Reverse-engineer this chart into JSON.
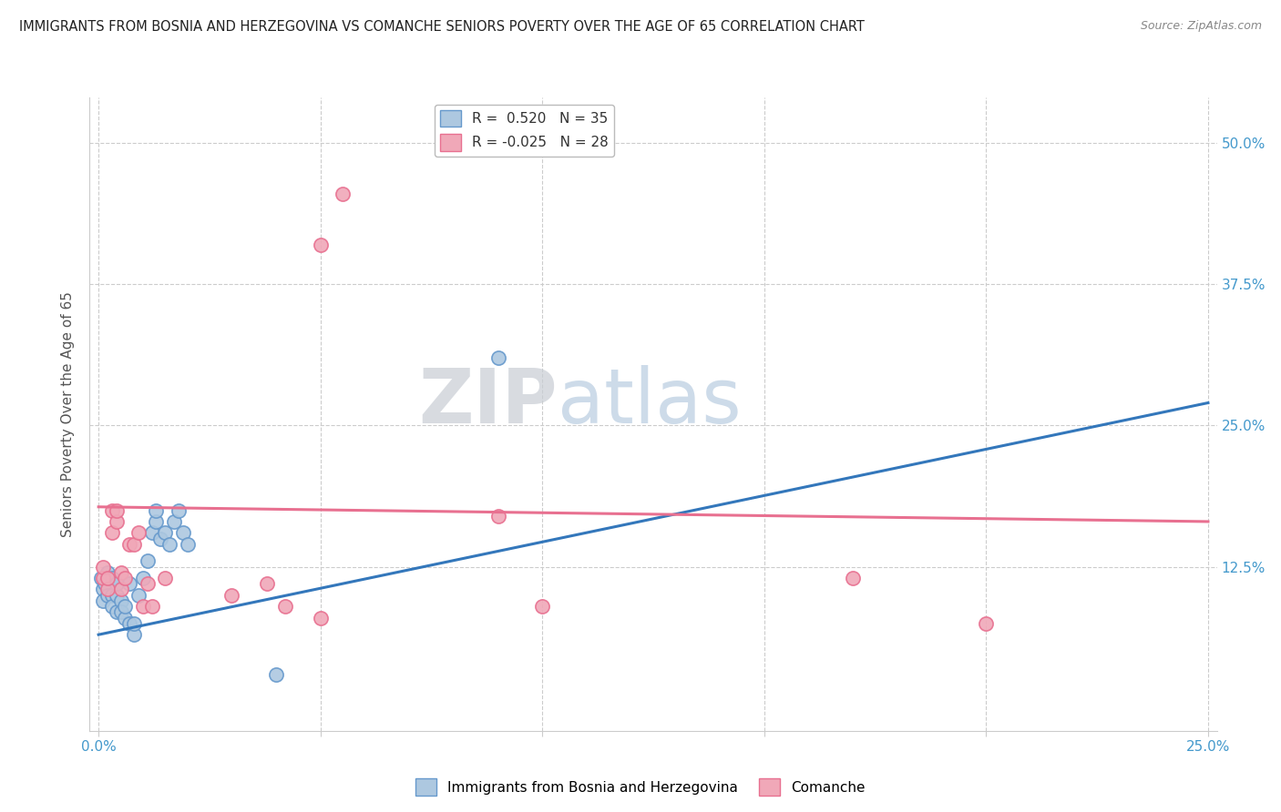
{
  "title": "IMMIGRANTS FROM BOSNIA AND HERZEGOVINA VS COMANCHE SENIORS POVERTY OVER THE AGE OF 65 CORRELATION CHART",
  "source": "Source: ZipAtlas.com",
  "ylabel": "Seniors Poverty Over the Age of 65",
  "y_tick_labels_right": [
    "50.0%",
    "37.5%",
    "25.0%",
    "12.5%"
  ],
  "y_tick_positions": [
    0.5,
    0.375,
    0.25,
    0.125
  ],
  "xlim": [
    -0.002,
    0.252
  ],
  "ylim": [
    -0.02,
    0.54
  ],
  "blue_scatter": [
    [
      0.0005,
      0.115
    ],
    [
      0.001,
      0.105
    ],
    [
      0.001,
      0.095
    ],
    [
      0.0015,
      0.11
    ],
    [
      0.002,
      0.12
    ],
    [
      0.002,
      0.1
    ],
    [
      0.003,
      0.115
    ],
    [
      0.003,
      0.1
    ],
    [
      0.003,
      0.09
    ],
    [
      0.004,
      0.085
    ],
    [
      0.004,
      0.1
    ],
    [
      0.004,
      0.11
    ],
    [
      0.005,
      0.095
    ],
    [
      0.005,
      0.085
    ],
    [
      0.006,
      0.08
    ],
    [
      0.006,
      0.09
    ],
    [
      0.007,
      0.075
    ],
    [
      0.007,
      0.11
    ],
    [
      0.008,
      0.065
    ],
    [
      0.008,
      0.075
    ],
    [
      0.009,
      0.1
    ],
    [
      0.01,
      0.115
    ],
    [
      0.011,
      0.13
    ],
    [
      0.012,
      0.155
    ],
    [
      0.013,
      0.165
    ],
    [
      0.013,
      0.175
    ],
    [
      0.014,
      0.15
    ],
    [
      0.015,
      0.155
    ],
    [
      0.016,
      0.145
    ],
    [
      0.017,
      0.165
    ],
    [
      0.018,
      0.175
    ],
    [
      0.019,
      0.155
    ],
    [
      0.02,
      0.145
    ],
    [
      0.04,
      0.03
    ],
    [
      0.09,
      0.31
    ]
  ],
  "pink_scatter": [
    [
      0.001,
      0.115
    ],
    [
      0.001,
      0.125
    ],
    [
      0.002,
      0.105
    ],
    [
      0.002,
      0.115
    ],
    [
      0.003,
      0.155
    ],
    [
      0.003,
      0.175
    ],
    [
      0.004,
      0.165
    ],
    [
      0.004,
      0.175
    ],
    [
      0.005,
      0.12
    ],
    [
      0.005,
      0.105
    ],
    [
      0.006,
      0.115
    ],
    [
      0.007,
      0.145
    ],
    [
      0.008,
      0.145
    ],
    [
      0.009,
      0.155
    ],
    [
      0.01,
      0.09
    ],
    [
      0.011,
      0.11
    ],
    [
      0.012,
      0.09
    ],
    [
      0.015,
      0.115
    ],
    [
      0.03,
      0.1
    ],
    [
      0.038,
      0.11
    ],
    [
      0.042,
      0.09
    ],
    [
      0.05,
      0.08
    ],
    [
      0.05,
      0.41
    ],
    [
      0.055,
      0.455
    ],
    [
      0.09,
      0.17
    ],
    [
      0.1,
      0.09
    ],
    [
      0.17,
      0.115
    ],
    [
      0.2,
      0.075
    ]
  ],
  "blue_line_x": [
    0.0,
    0.25
  ],
  "blue_line_y": [
    0.065,
    0.27
  ],
  "pink_line_x": [
    0.0,
    0.25
  ],
  "pink_line_y": [
    0.178,
    0.165
  ],
  "dot_size": 120,
  "blue_edge_color": "#6699cc",
  "blue_face_color": "#adc8e0",
  "pink_edge_color": "#e87090",
  "pink_face_color": "#f0a8b8",
  "watermark_zip": "ZIP",
  "watermark_atlas": "atlas",
  "watermark_zip_color": "#c8cdd4",
  "watermark_atlas_color": "#b8cce0",
  "background_color": "#ffffff",
  "grid_color": "#cccccc",
  "axis_label_color": "#4499cc",
  "title_color": "#222222"
}
